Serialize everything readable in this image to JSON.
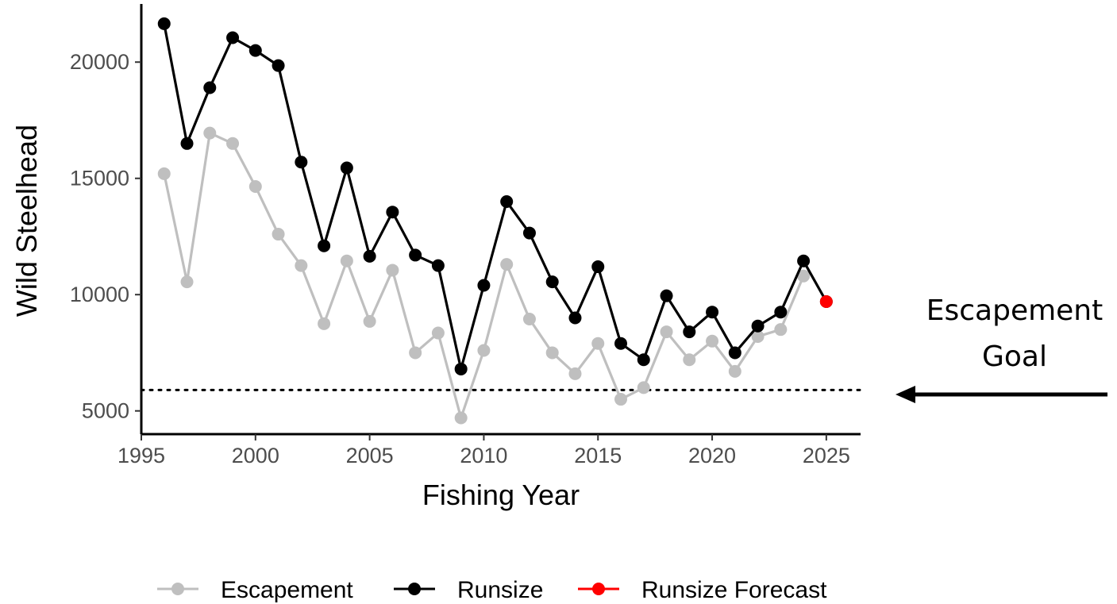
{
  "chart_data": {
    "type": "line",
    "xlabel": "Fishing Year",
    "ylabel": "Wild Steelhead",
    "xlim": [
      1995,
      2026.5
    ],
    "ylim": [
      4000,
      22500
    ],
    "x_ticks": [
      1995,
      2000,
      2005,
      2010,
      2015,
      2020,
      2025
    ],
    "y_ticks": [
      5000,
      10000,
      15000,
      20000
    ],
    "grid": false,
    "legend_position": "bottom",
    "escapement_goal": 5900,
    "annotation": {
      "line1": "Escapement",
      "line2": "Goal"
    },
    "series": [
      {
        "name": "Escapement",
        "color": "#bfbfbf",
        "x": [
          1996,
          1997,
          1998,
          1999,
          2000,
          2001,
          2002,
          2003,
          2004,
          2005,
          2006,
          2007,
          2008,
          2009,
          2010,
          2011,
          2012,
          2013,
          2014,
          2015,
          2016,
          2017,
          2018,
          2019,
          2020,
          2021,
          2022,
          2023,
          2024
        ],
        "values": [
          15200,
          10550,
          16950,
          16500,
          14650,
          12600,
          11250,
          8750,
          11450,
          8850,
          11050,
          7500,
          8350,
          4700,
          7600,
          11300,
          8950,
          7500,
          6600,
          7900,
          5500,
          6000,
          8400,
          7200,
          8000,
          6700,
          8200,
          8500,
          10800
        ]
      },
      {
        "name": "Runsize",
        "color": "#000000",
        "x": [
          1996,
          1997,
          1998,
          1999,
          2000,
          2001,
          2002,
          2003,
          2004,
          2005,
          2006,
          2007,
          2008,
          2009,
          2010,
          2011,
          2012,
          2013,
          2014,
          2015,
          2016,
          2017,
          2018,
          2019,
          2020,
          2021,
          2022,
          2023,
          2024,
          2025
        ],
        "values": [
          21650,
          16500,
          18900,
          21050,
          20500,
          19850,
          15700,
          12100,
          15450,
          11650,
          13550,
          11700,
          11250,
          6800,
          10400,
          14000,
          12650,
          10550,
          9000,
          11200,
          7900,
          7200,
          9950,
          8400,
          9250,
          7500,
          8650,
          9250,
          11450,
          9700
        ]
      },
      {
        "name": "Runsize Forecast",
        "color": "#ff0000",
        "x": [
          2025
        ],
        "values": [
          9700
        ]
      }
    ]
  }
}
